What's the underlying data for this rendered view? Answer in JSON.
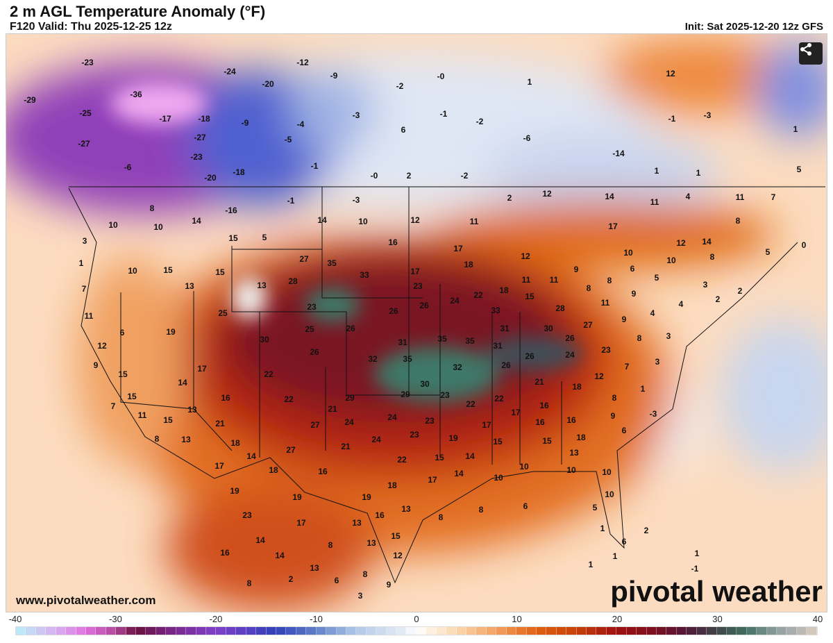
{
  "header": {
    "title": "2 m AGL Temperature Anomaly (°F)",
    "valid": "F120 Valid: Thu 2025-12-25 12z",
    "init": "Init: Sat 2025-12-20 12z GFS"
  },
  "footer": {
    "website": "www.pivotalweather.com",
    "logo": "pivotal weather"
  },
  "share_button": {
    "icon": "share-icon"
  },
  "colorbar": {
    "ticks": [
      "-40",
      "-30",
      "-20",
      "-10",
      "0",
      "10",
      "20",
      "30",
      "40"
    ],
    "range": [
      -40,
      40
    ],
    "units": "°F",
    "stops": [
      [
        -40,
        "#b8f0f8"
      ],
      [
        -36,
        "#d8b0f0"
      ],
      [
        -33,
        "#e070e0"
      ],
      [
        -30,
        "#b04898"
      ],
      [
        -28,
        "#6a1040"
      ],
      [
        -24,
        "#7a2a90"
      ],
      [
        -20,
        "#8040c8"
      ],
      [
        -14,
        "#3040b8"
      ],
      [
        -10,
        "#6080c8"
      ],
      [
        -6,
        "#b0c8e8"
      ],
      [
        -1,
        "#e8eef8"
      ],
      [
        0,
        "#ffffff"
      ],
      [
        4,
        "#fcd8b0"
      ],
      [
        8,
        "#f4a060"
      ],
      [
        12,
        "#e06010"
      ],
      [
        16,
        "#c84008"
      ],
      [
        20,
        "#a01010"
      ],
      [
        24,
        "#781020"
      ],
      [
        27,
        "#501838"
      ],
      [
        30,
        "#404448"
      ],
      [
        33,
        "#407060"
      ],
      [
        36,
        "#90a0a0"
      ],
      [
        38,
        "#b0b0b0"
      ],
      [
        40,
        "#e0d0c0"
      ]
    ]
  },
  "map_labels": [
    "-23",
    "-24",
    "-12",
    "-20",
    "-9",
    "-36",
    "-29",
    "-25",
    "-17",
    "-18",
    "-9",
    "-4",
    "-0",
    "-2",
    "-2",
    "-3",
    "-1",
    "1",
    "12",
    "-27",
    "-27",
    "-5",
    "-6",
    "6",
    "-1",
    "-3",
    "1",
    "-23",
    "-14",
    "-6",
    "-20",
    "-18",
    "-1",
    "-0",
    "2",
    "-2",
    "1",
    "1",
    "5",
    "-1",
    "-3",
    "2",
    "12",
    "14",
    "11",
    "4",
    "11",
    "7",
    "8",
    "-16",
    "14",
    "10",
    "10",
    "14",
    "10",
    "12",
    "11",
    "17",
    "8",
    "3",
    "15",
    "5",
    "16",
    "17",
    "12",
    "14",
    "5",
    "0",
    "1",
    "10",
    "15",
    "15",
    "27",
    "35",
    "33",
    "17",
    "18",
    "12",
    "10",
    "10",
    "8",
    "13",
    "13",
    "28",
    "23",
    "18",
    "11",
    "11",
    "9",
    "6",
    "8",
    "5",
    "3",
    "7",
    "8",
    "9",
    "2",
    "2",
    "11",
    "25",
    "23",
    "22",
    "24",
    "26",
    "26",
    "33",
    "15",
    "28",
    "11",
    "4",
    "6",
    "19",
    "30",
    "25",
    "26",
    "31",
    "30",
    "27",
    "9",
    "4",
    "12",
    "26",
    "31",
    "35",
    "35",
    "31",
    "26",
    "23",
    "8",
    "3",
    "9",
    "17",
    "32",
    "35",
    "32",
    "26",
    "26",
    "24",
    "7",
    "3",
    "15",
    "14",
    "22",
    "30",
    "21",
    "18",
    "12",
    "1",
    "15",
    "16",
    "22",
    "29",
    "29",
    "23",
    "22",
    "22",
    "16",
    "8",
    "7",
    "11",
    "13",
    "21",
    "24",
    "24",
    "23",
    "17",
    "17",
    "16",
    "16",
    "9",
    "-3",
    "15",
    "21",
    "27",
    "8",
    "13",
    "18",
    "21",
    "24",
    "23",
    "19",
    "15",
    "15",
    "18",
    "6",
    "14",
    "27",
    "22",
    "15",
    "14",
    "13",
    "17",
    "18",
    "16",
    "10",
    "10",
    "10",
    "14",
    "10",
    "17",
    "19",
    "18",
    "19",
    "19",
    "10",
    "23",
    "16",
    "13",
    "8",
    "8",
    "6",
    "5",
    "17",
    "13",
    "1",
    "2",
    "6",
    "14",
    "8",
    "13",
    "15",
    "16",
    "14",
    "12",
    "13",
    "8",
    "6",
    "9",
    "2",
    "8",
    "3",
    "1",
    "1",
    "1",
    "-1"
  ]
}
